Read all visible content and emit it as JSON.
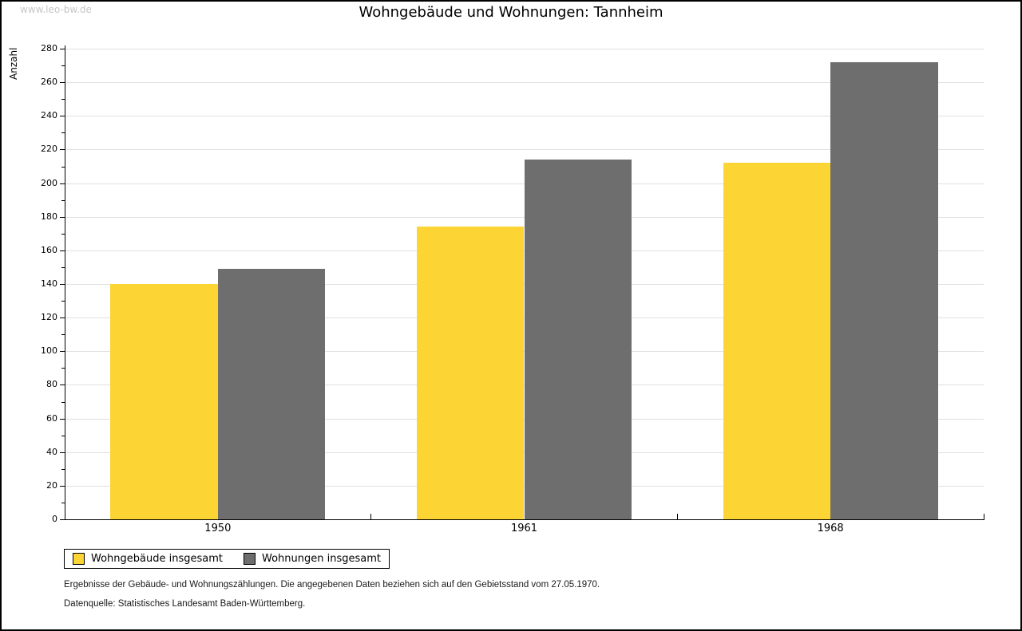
{
  "page": {
    "watermark": "www.leo-bw.de"
  },
  "chart_data": {
    "type": "bar",
    "title": "Wohngebäude und Wohnungen: Tannheim",
    "ylabel": "Anzahl",
    "xlabel": "",
    "categories": [
      "1950",
      "1961",
      "1968"
    ],
    "series": [
      {
        "name": "Wohngebäude insgesamt",
        "color": "#FCD433",
        "values": [
          140,
          174,
          212
        ]
      },
      {
        "name": "Wohnungen insgesamt",
        "color": "#6E6E6E",
        "values": [
          149,
          214,
          272
        ]
      }
    ],
    "ylim": [
      0,
      280
    ],
    "yticks": [
      0,
      20,
      40,
      60,
      80,
      100,
      120,
      140,
      160,
      180,
      200,
      220,
      240,
      260,
      280
    ],
    "ytick_minor_step": 10,
    "grid": true,
    "legend_position": "bottom-left",
    "colors": {
      "gridline": "#E0E0E0",
      "axis": "#000000",
      "watermark": "#C6C6C6",
      "background": "#FFFFFF"
    }
  },
  "footer": {
    "note": "Ergebnisse der Gebäude- und Wohnungszählungen. Die angegebenen Daten beziehen sich auf den Gebietsstand vom 27.05.1970.",
    "source": "Datenquelle: Statistisches Landesamt Baden-Württemberg."
  }
}
